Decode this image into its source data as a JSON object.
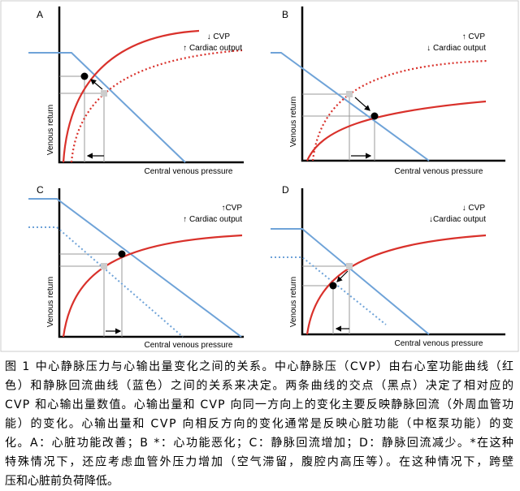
{
  "figure": {
    "panels": [
      {
        "label": "A",
        "annotation_1": "↓ CVP",
        "annotation_2": "↑ Cardiac output",
        "y_axis_label": "Venous return",
        "x_axis_label": "Central venous pressure"
      },
      {
        "label": "B",
        "annotation_1": "↑ CVP",
        "annotation_2": "↓ Cardiac output",
        "y_axis_label": "Venous return",
        "x_axis_label": "Central venous pressure"
      },
      {
        "label": "C",
        "annotation_1": "↑CVP",
        "annotation_2": "↑ Cardiac output",
        "y_axis_label": "Venous return",
        "x_axis_label": "Central venous pressure"
      },
      {
        "label": "D",
        "annotation_1": "↓ CVP",
        "annotation_2": "↓Cardiac output",
        "y_axis_label": "Venous return",
        "x_axis_label": "Central venous pressure"
      }
    ],
    "caption": [
      "图 1  中心静脉压力与心输出量变化之间的关系。中心静脉压（CVP）由右心室功能曲线（红",
      "色）和静脉回流曲线（蓝色）之间的关系来决定。两条曲线的交点（黑点）决定了相对应的",
      "CVP 和心输出量数值。心输出量和 CVP 向同一方向上的变化主要反映静脉回流（外周血管功",
      "能）的变化。心输出量和 CVP 向相反方向的变化通常是反映心脏功能（中枢泵功能）的变",
      "化。A：心脏功能改善；B *：心功能恶化；C：静脉回流增加；D：静脉回流减少。*在这种",
      "特殊情况下，还应考虑血管外压力增加（空气滞留，腹腔内高压等）。在这种情况下，跨壁",
      "压和心脏前负荷降低。"
    ]
  }
}
